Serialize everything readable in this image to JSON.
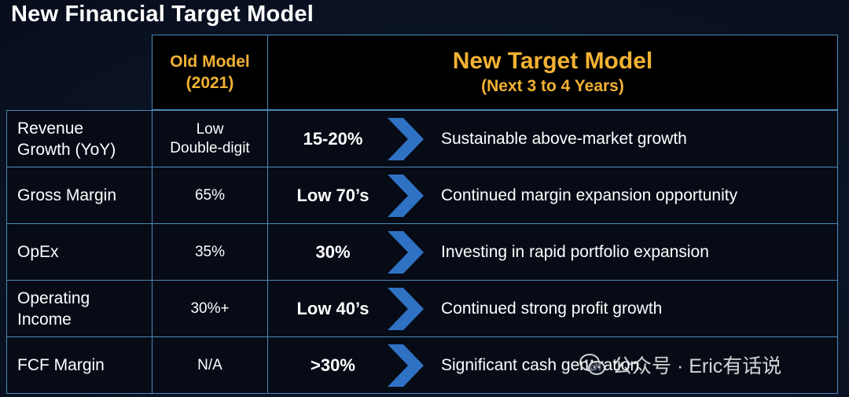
{
  "slide_title": "New Financial Target Model",
  "headers": {
    "old_line1": "Old Model",
    "old_line2": "(2021)",
    "new_line1": "New Target Model",
    "new_line2": "(Next 3 to 4 Years)"
  },
  "rows": [
    {
      "label_line1": "Revenue",
      "label_line2": "Growth (YoY)",
      "old_line1": "Low",
      "old_line2": "Double-digit",
      "target": "15-20%",
      "desc": "Sustainable above-market growth"
    },
    {
      "label_line1": "Gross Margin",
      "label_line2": "",
      "old_line1": "65%",
      "old_line2": "",
      "target": "Low 70’s",
      "desc": "Continued margin expansion opportunity"
    },
    {
      "label_line1": "OpEx",
      "label_line2": "",
      "old_line1": "35%",
      "old_line2": "",
      "target": "30%",
      "desc": "Investing in rapid portfolio expansion"
    },
    {
      "label_line1": "Operating",
      "label_line2": "Income",
      "old_line1": "30%+",
      "old_line2": "",
      "target": "Low 40’s",
      "desc": "Continued strong profit growth"
    },
    {
      "label_line1": "FCF Margin",
      "label_line2": "",
      "old_line1": "N/A",
      "old_line2": "",
      "target": ">30%",
      "desc": "Significant cash generation"
    }
  ],
  "watermark": "公众号 · Eric有话说",
  "colors": {
    "header_text": "#f2b233",
    "border": "#4a8ab8",
    "chevron": "#2f72c4"
  },
  "icons": {
    "arrow": "chevron-right-icon",
    "watermark": "wechat-icon"
  }
}
